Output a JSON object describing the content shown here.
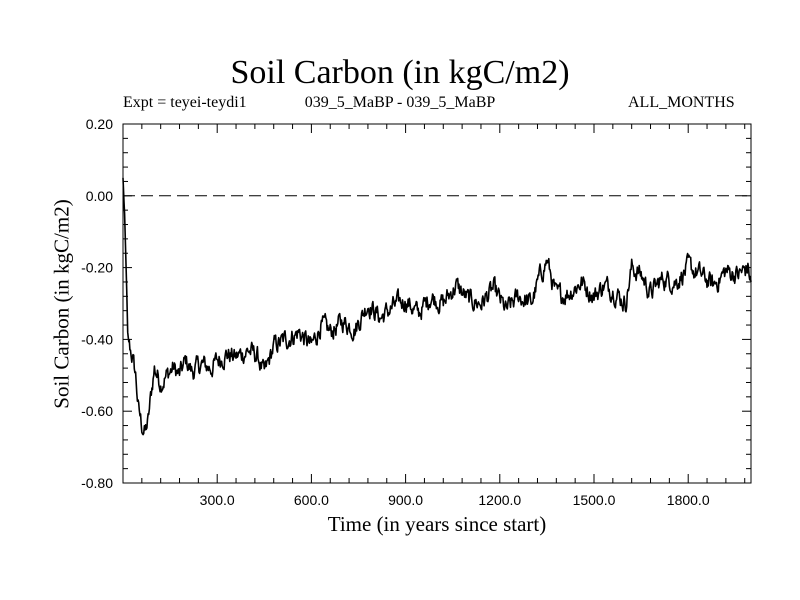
{
  "chart_data": {
    "type": "line",
    "title": "Soil Carbon (in kgC/m2)",
    "subtitle_left": "Expt = teyei-teydi1",
    "subtitle_center": "039_5_MaBP - 039_5_MaBP",
    "subtitle_right": "ALL_MONTHS",
    "xlabel": "Time (in years since start)",
    "ylabel": "Soil Carbon (in kgC/m2)",
    "xlim": [
      0,
      2000
    ],
    "ylim": [
      -0.8,
      0.2
    ],
    "xticks": [
      300,
      600,
      900,
      1200,
      1500,
      1800
    ],
    "xtick_labels": [
      "300.0",
      "600.0",
      "900.0",
      "1200.0",
      "1500.0",
      "1800.0"
    ],
    "yticks": [
      0.2,
      0.0,
      -0.2,
      -0.4,
      -0.6,
      -0.8
    ],
    "ytick_labels": [
      "0.20",
      "0.00",
      "-0.20",
      "-0.40",
      "-0.60",
      "-0.80"
    ],
    "reference_line": {
      "y": 0.0,
      "style": "dashed"
    },
    "series": [
      {
        "name": "Soil Carbon",
        "color": "#000000",
        "x": [
          0,
          5,
          10,
          15,
          20,
          30,
          40,
          50,
          60,
          70,
          80,
          90,
          100,
          110,
          120,
          140,
          160,
          180,
          200,
          220,
          250,
          280,
          300,
          330,
          360,
          400,
          430,
          450,
          480,
          520,
          560,
          600,
          630,
          660,
          700,
          740,
          780,
          820,
          860,
          900,
          940,
          980,
          1020,
          1060,
          1100,
          1140,
          1180,
          1220,
          1260,
          1300,
          1330,
          1350,
          1380,
          1420,
          1460,
          1500,
          1530,
          1560,
          1600,
          1620,
          1650,
          1680,
          1720,
          1760,
          1800,
          1840,
          1880,
          1920,
          1960,
          1990,
          2000
        ],
        "y": [
          0.05,
          -0.05,
          -0.2,
          -0.38,
          -0.42,
          -0.45,
          -0.5,
          -0.6,
          -0.64,
          -0.66,
          -0.63,
          -0.55,
          -0.48,
          -0.5,
          -0.52,
          -0.5,
          -0.48,
          -0.5,
          -0.46,
          -0.49,
          -0.47,
          -0.48,
          -0.46,
          -0.44,
          -0.45,
          -0.43,
          -0.45,
          -0.5,
          -0.42,
          -0.4,
          -0.38,
          -0.42,
          -0.36,
          -0.38,
          -0.35,
          -0.37,
          -0.3,
          -0.34,
          -0.31,
          -0.29,
          -0.33,
          -0.28,
          -0.3,
          -0.25,
          -0.29,
          -0.3,
          -0.26,
          -0.32,
          -0.28,
          -0.3,
          -0.22,
          -0.18,
          -0.28,
          -0.27,
          -0.24,
          -0.28,
          -0.25,
          -0.26,
          -0.3,
          -0.2,
          -0.22,
          -0.27,
          -0.23,
          -0.24,
          -0.2,
          -0.22,
          -0.25,
          -0.21,
          -0.22,
          -0.2,
          -0.24
        ]
      }
    ]
  }
}
